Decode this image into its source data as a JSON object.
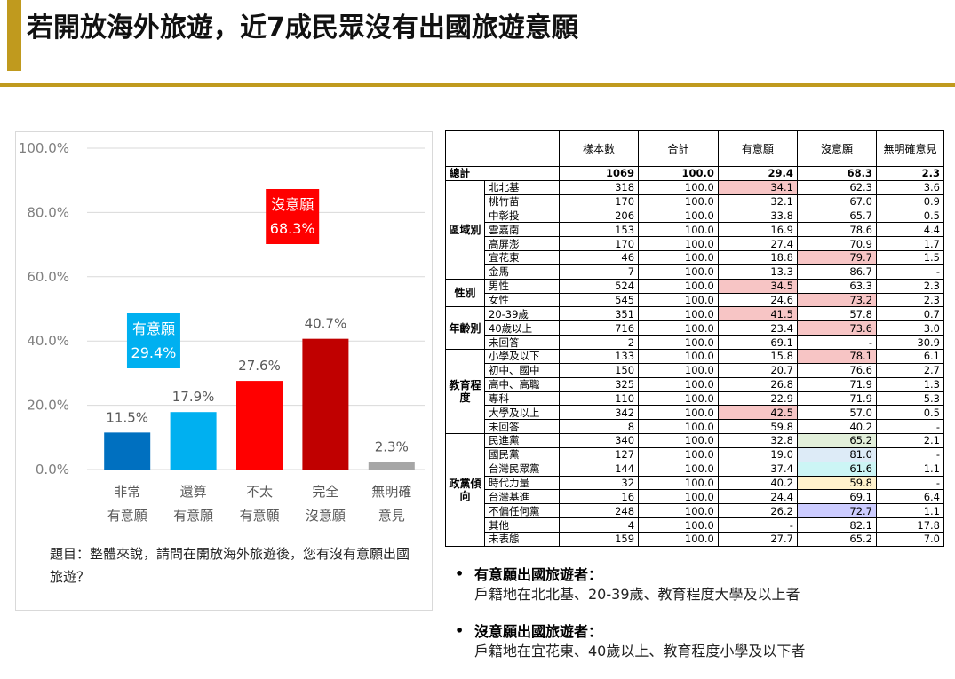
{
  "title": "若開放海外旅遊，近7成民眾沒有出國旅遊意願",
  "question": "題目：整體來說，請問在開放海外旅遊後，您有沒有意願出國旅遊？",
  "colors": {
    "accent": "#c09a1e"
  },
  "chart_data": {
    "type": "bar",
    "categories": [
      [
        "非常",
        "有意願"
      ],
      [
        "還算",
        "有意願"
      ],
      [
        "不太",
        "有意願"
      ],
      [
        "完全",
        "沒意願"
      ],
      [
        "無明確",
        "意見"
      ]
    ],
    "values": [
      11.5,
      17.9,
      27.6,
      40.7,
      2.3
    ],
    "value_labels": [
      "11.5%",
      "17.9%",
      "27.6%",
      "40.7%",
      "2.3%"
    ],
    "colors": [
      "#0070c0",
      "#00b0f0",
      "#ff0000",
      "#c00000",
      "#a6a6a6"
    ],
    "ylim": [
      0,
      100
    ],
    "yticks": [
      "0.0%",
      "20.0%",
      "40.0%",
      "60.0%",
      "80.0%",
      "100.0%"
    ],
    "grid": true,
    "annotations": [
      {
        "label": "有意願",
        "value": "29.4%",
        "color": "#00b0f0"
      },
      {
        "label": "沒意願",
        "value": "68.3%",
        "color": "#ff0000"
      }
    ]
  },
  "table": {
    "headers": [
      "",
      "",
      "樣本數",
      "合計",
      "有意願",
      "沒意願",
      "無明確意見"
    ],
    "total": {
      "label": "總計",
      "cells": [
        "1069",
        "100.0",
        "29.4",
        "68.3",
        "2.3"
      ]
    },
    "groups": [
      {
        "name": "區域別",
        "rows": [
          {
            "label": "北北基",
            "cells": [
              "318",
              "100.0",
              "34.1",
              "62.3",
              "3.6"
            ],
            "hl": [
              null,
              null,
              "red",
              null,
              null
            ]
          },
          {
            "label": "桃竹苗",
            "cells": [
              "170",
              "100.0",
              "32.1",
              "67.0",
              "0.9"
            ],
            "hl": [
              null,
              null,
              null,
              null,
              null
            ]
          },
          {
            "label": "中彰投",
            "cells": [
              "206",
              "100.0",
              "33.8",
              "65.7",
              "0.5"
            ],
            "hl": [
              null,
              null,
              null,
              null,
              null
            ]
          },
          {
            "label": "雲嘉南",
            "cells": [
              "153",
              "100.0",
              "16.9",
              "78.6",
              "4.4"
            ],
            "hl": [
              null,
              null,
              null,
              null,
              null
            ]
          },
          {
            "label": "高屏澎",
            "cells": [
              "170",
              "100.0",
              "27.4",
              "70.9",
              "1.7"
            ],
            "hl": [
              null,
              null,
              null,
              null,
              null
            ]
          },
          {
            "label": "宜花東",
            "cells": [
              "46",
              "100.0",
              "18.8",
              "79.7",
              "1.5"
            ],
            "hl": [
              null,
              null,
              null,
              "red",
              null
            ]
          },
          {
            "label": "金馬",
            "cells": [
              "7",
              "100.0",
              "13.3",
              "86.7",
              "-"
            ],
            "hl": [
              null,
              null,
              null,
              null,
              null
            ]
          }
        ]
      },
      {
        "name": "性別",
        "rows": [
          {
            "label": "男性",
            "cells": [
              "524",
              "100.0",
              "34.5",
              "63.3",
              "2.3"
            ],
            "hl": [
              null,
              null,
              "red",
              null,
              null
            ]
          },
          {
            "label": "女性",
            "cells": [
              "545",
              "100.0",
              "24.6",
              "73.2",
              "2.3"
            ],
            "hl": [
              null,
              null,
              null,
              "red",
              null
            ]
          }
        ]
      },
      {
        "name": "年齡別",
        "rows": [
          {
            "label": "20-39歲",
            "cells": [
              "351",
              "100.0",
              "41.5",
              "57.8",
              "0.7"
            ],
            "hl": [
              null,
              null,
              "red",
              null,
              null
            ]
          },
          {
            "label": "40歲以上",
            "cells": [
              "716",
              "100.0",
              "23.4",
              "73.6",
              "3.0"
            ],
            "hl": [
              null,
              null,
              null,
              "red",
              null
            ]
          },
          {
            "label": "未回答",
            "cells": [
              "2",
              "100.0",
              "69.1",
              "-",
              "30.9"
            ],
            "hl": [
              null,
              null,
              null,
              null,
              null
            ]
          }
        ]
      },
      {
        "name": "教育程度",
        "rows": [
          {
            "label": "小學及以下",
            "cells": [
              "133",
              "100.0",
              "15.8",
              "78.1",
              "6.1"
            ],
            "hl": [
              null,
              null,
              null,
              "red",
              null
            ]
          },
          {
            "label": "初中、國中",
            "cells": [
              "150",
              "100.0",
              "20.7",
              "76.6",
              "2.7"
            ],
            "hl": [
              null,
              null,
              null,
              null,
              null
            ]
          },
          {
            "label": "高中、高職",
            "cells": [
              "325",
              "100.0",
              "26.8",
              "71.9",
              "1.3"
            ],
            "hl": [
              null,
              null,
              null,
              null,
              null
            ]
          },
          {
            "label": "專科",
            "cells": [
              "110",
              "100.0",
              "22.9",
              "71.9",
              "5.3"
            ],
            "hl": [
              null,
              null,
              null,
              null,
              null
            ]
          },
          {
            "label": "大學及以上",
            "cells": [
              "342",
              "100.0",
              "42.5",
              "57.0",
              "0.5"
            ],
            "hl": [
              null,
              null,
              "red",
              null,
              null
            ]
          },
          {
            "label": "未回答",
            "cells": [
              "8",
              "100.0",
              "59.8",
              "40.2",
              "-"
            ],
            "hl": [
              null,
              null,
              null,
              null,
              null
            ]
          }
        ]
      },
      {
        "name": "政黨傾向",
        "rows": [
          {
            "label": "民進黨",
            "cells": [
              "340",
              "100.0",
              "32.8",
              "65.2",
              "2.1"
            ],
            "hl": [
              null,
              null,
              null,
              "green",
              null
            ]
          },
          {
            "label": "國民黨",
            "cells": [
              "127",
              "100.0",
              "19.0",
              "81.0",
              "-"
            ],
            "hl": [
              null,
              null,
              null,
              "blue",
              null
            ]
          },
          {
            "label": "台灣民眾黨",
            "cells": [
              "144",
              "100.0",
              "37.4",
              "61.6",
              "1.1"
            ],
            "hl": [
              null,
              null,
              null,
              "cyan",
              null
            ]
          },
          {
            "label": "時代力量",
            "cells": [
              "32",
              "100.0",
              "40.2",
              "59.8",
              "-"
            ],
            "hl": [
              null,
              null,
              null,
              "yellow",
              null
            ]
          },
          {
            "label": "台灣基進",
            "cells": [
              "16",
              "100.0",
              "24.4",
              "69.1",
              "6.4"
            ],
            "hl": [
              null,
              null,
              null,
              null,
              null
            ]
          },
          {
            "label": "不偏任何黨",
            "cells": [
              "248",
              "100.0",
              "26.2",
              "72.7",
              "1.1"
            ],
            "hl": [
              null,
              null,
              null,
              "violet",
              null
            ]
          },
          {
            "label": "其他",
            "cells": [
              "4",
              "100.0",
              "-",
              "82.1",
              "17.8"
            ],
            "hl": [
              null,
              null,
              null,
              null,
              null
            ]
          },
          {
            "label": "未表態",
            "cells": [
              "159",
              "100.0",
              "27.7",
              "65.2",
              "7.0"
            ],
            "hl": [
              null,
              null,
              null,
              null,
              null
            ]
          }
        ]
      }
    ]
  },
  "notes": [
    {
      "bullet": "•",
      "title": "有意願出國旅遊者：",
      "detail": "戶籍地在北北基、20-39歲、教育程度大學及以上者"
    },
    {
      "bullet": "•",
      "title": "沒意願出國旅遊者：",
      "detail": "戶籍地在宜花東、40歲以上、教育程度小學及以下者"
    }
  ]
}
